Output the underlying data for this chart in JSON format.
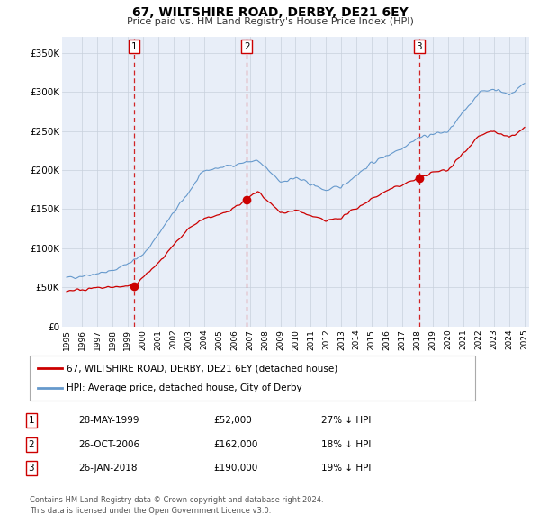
{
  "title": "67, WILTSHIRE ROAD, DERBY, DE21 6EY",
  "subtitle": "Price paid vs. HM Land Registry's House Price Index (HPI)",
  "ylabel_ticks": [
    "£0",
    "£50K",
    "£100K",
    "£150K",
    "£200K",
    "£250K",
    "£300K",
    "£350K"
  ],
  "ytick_values": [
    0,
    50000,
    100000,
    150000,
    200000,
    250000,
    300000,
    350000
  ],
  "ylim": [
    0,
    370000
  ],
  "xlim_start": 1994.7,
  "xlim_end": 2025.3,
  "red_color": "#cc0000",
  "blue_color": "#6699cc",
  "vline_color": "#cc0000",
  "transactions": [
    {
      "num": 1,
      "year": 1999.4,
      "price": 52000,
      "date": "28-MAY-1999",
      "amount": "£52,000",
      "hpi_diff": "27% ↓ HPI"
    },
    {
      "num": 2,
      "year": 2006.8,
      "price": 162000,
      "date": "26-OCT-2006",
      "amount": "£162,000",
      "hpi_diff": "18% ↓ HPI"
    },
    {
      "num": 3,
      "year": 2018.1,
      "price": 190000,
      "date": "26-JAN-2018",
      "amount": "£190,000",
      "hpi_diff": "19% ↓ HPI"
    }
  ],
  "legend_label_red": "67, WILTSHIRE ROAD, DERBY, DE21 6EY (detached house)",
  "legend_label_blue": "HPI: Average price, detached house, City of Derby",
  "footer_line1": "Contains HM Land Registry data © Crown copyright and database right 2024.",
  "footer_line2": "This data is licensed under the Open Government Licence v3.0.",
  "background_color": "#ffffff",
  "plot_bg_color": "#e8eef8",
  "grid_color": "#c8d0dc"
}
